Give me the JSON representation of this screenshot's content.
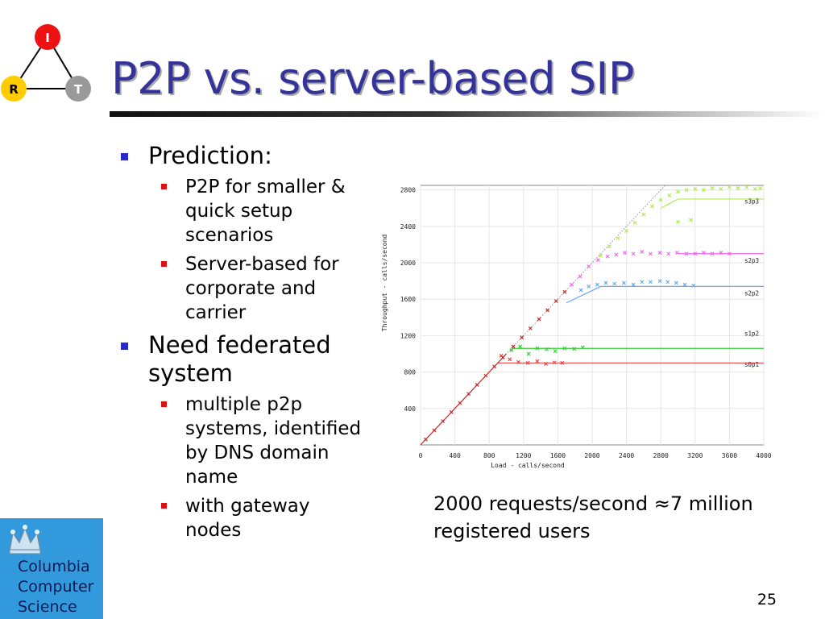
{
  "logo": {
    "nodes": [
      "I",
      "R",
      "T"
    ]
  },
  "slide": {
    "title": "P2P vs. server-based SIP",
    "page_number": "25"
  },
  "bullets": [
    {
      "text": "Prediction:",
      "children": [
        "P2P for smaller & quick setup scenarios",
        "Server-based for corporate and carrier"
      ]
    },
    {
      "text": "Need federated system",
      "children": [
        "multiple p2p systems, identified by DNS domain name",
        "with gateway nodes"
      ]
    }
  ],
  "caption": "2000 requests/second ≈7 million registered users",
  "institution_logo": {
    "text": "Columbia\nComputer\nScience",
    "icon": "crown-icon"
  },
  "colors": {
    "title": "#333399",
    "bullet_l1": "#2a2acc",
    "bullet_l2": "#dd1111",
    "logo_bg": "#3399dd"
  },
  "chart_data": {
    "type": "scatter",
    "xlabel": "Load - calls/second",
    "ylabel": "Throughput - calls/second",
    "xlim": [
      0,
      4000
    ],
    "ylim": [
      0,
      2850
    ],
    "xticks": [
      0,
      400,
      800,
      1200,
      1600,
      2000,
      2400,
      2800,
      3200,
      3600,
      4000
    ],
    "yticks": [
      400,
      800,
      1200,
      1600,
      2000,
      2400,
      2800
    ],
    "grid": true,
    "series": [
      {
        "name": "s0p1",
        "color": "#ee4444",
        "line_x": [
          900,
          4000
        ],
        "line_y": [
          900,
          900
        ],
        "points": [
          [
            940,
            980
          ],
          [
            1040,
            940
          ],
          [
            1140,
            910
          ],
          [
            1250,
            900
          ],
          [
            1360,
            920
          ],
          [
            1460,
            890
          ],
          [
            1560,
            905
          ],
          [
            1650,
            900
          ]
        ]
      },
      {
        "name": "s1p2",
        "color": "#33cc33",
        "line_x": [
          1060,
          4000
        ],
        "line_y": [
          1060,
          1060
        ],
        "points": [
          [
            1060,
            1040
          ],
          [
            1160,
            1080
          ],
          [
            1260,
            1000
          ],
          [
            1360,
            1060
          ],
          [
            1470,
            1050
          ],
          [
            1570,
            1030
          ],
          [
            1680,
            1060
          ],
          [
            1790,
            1055
          ],
          [
            1890,
            1070
          ]
        ]
      },
      {
        "name": "s2p2",
        "color": "#66aaee",
        "line_x": [
          1700,
          2100,
          4000
        ],
        "line_y": [
          1560,
          1740,
          1740
        ],
        "points": [
          [
            1870,
            1700
          ],
          [
            1960,
            1740
          ],
          [
            2060,
            1760
          ],
          [
            2160,
            1780
          ],
          [
            2260,
            1770
          ],
          [
            2370,
            1780
          ],
          [
            2480,
            1760
          ],
          [
            2580,
            1790
          ],
          [
            2680,
            1790
          ],
          [
            2790,
            1800
          ],
          [
            2880,
            1790
          ],
          [
            2980,
            1780
          ],
          [
            3080,
            1760
          ],
          [
            3180,
            1750
          ]
        ]
      },
      {
        "name": "s2p3",
        "color": "#ee66ee",
        "line_x": [
          3000,
          4000
        ],
        "line_y": [
          2100,
          2100
        ],
        "points": [
          [
            1760,
            1760
          ],
          [
            1860,
            1850
          ],
          [
            1960,
            1960
          ],
          [
            2070,
            2030
          ],
          [
            2180,
            2070
          ],
          [
            2280,
            2090
          ],
          [
            2380,
            2110
          ],
          [
            2480,
            2100
          ],
          [
            2580,
            2120
          ],
          [
            2680,
            2100
          ],
          [
            2790,
            2110
          ],
          [
            2890,
            2100
          ],
          [
            2990,
            2110
          ],
          [
            3100,
            2100
          ],
          [
            3200,
            2100
          ],
          [
            3300,
            2110
          ],
          [
            3400,
            2100
          ],
          [
            3500,
            2110
          ],
          [
            3600,
            2100
          ]
        ]
      },
      {
        "name": "s3p3",
        "color": "#aaee55",
        "line_x": [
          2800,
          3000,
          4000
        ],
        "line_y": [
          2600,
          2700,
          2700
        ],
        "points": [
          [
            2100,
            2080
          ],
          [
            2200,
            2180
          ],
          [
            2300,
            2270
          ],
          [
            2400,
            2350
          ],
          [
            2500,
            2440
          ],
          [
            2600,
            2530
          ],
          [
            2700,
            2620
          ],
          [
            2800,
            2690
          ],
          [
            2900,
            2740
          ],
          [
            3000,
            2780
          ],
          [
            3100,
            2800
          ],
          [
            3200,
            2810
          ],
          [
            3300,
            2800
          ],
          [
            3400,
            2820
          ],
          [
            3500,
            2810
          ],
          [
            3600,
            2830
          ],
          [
            3700,
            2820
          ],
          [
            3800,
            2830
          ],
          [
            3900,
            2810
          ],
          [
            3960,
            2820
          ],
          [
            3000,
            2450
          ],
          [
            3150,
            2470
          ]
        ]
      },
      {
        "name": "",
        "color": "#cc2222",
        "line_x": [
          0,
          1000
        ],
        "line_y": [
          0,
          1000
        ],
        "points": [
          [
            60,
            60
          ],
          [
            160,
            160
          ],
          [
            260,
            260
          ],
          [
            360,
            360
          ],
          [
            460,
            460
          ],
          [
            560,
            560
          ],
          [
            660,
            660
          ],
          [
            760,
            760
          ],
          [
            860,
            860
          ],
          [
            960,
            960
          ],
          [
            1080,
            1080
          ],
          [
            1180,
            1180
          ],
          [
            1280,
            1280
          ],
          [
            1380,
            1380
          ],
          [
            1480,
            1480
          ],
          [
            1580,
            1580
          ],
          [
            1680,
            1680
          ]
        ]
      }
    ],
    "series_labels": [
      "s3p3",
      "s2p3",
      "s2p2",
      "s1p2",
      "s0p1"
    ]
  }
}
